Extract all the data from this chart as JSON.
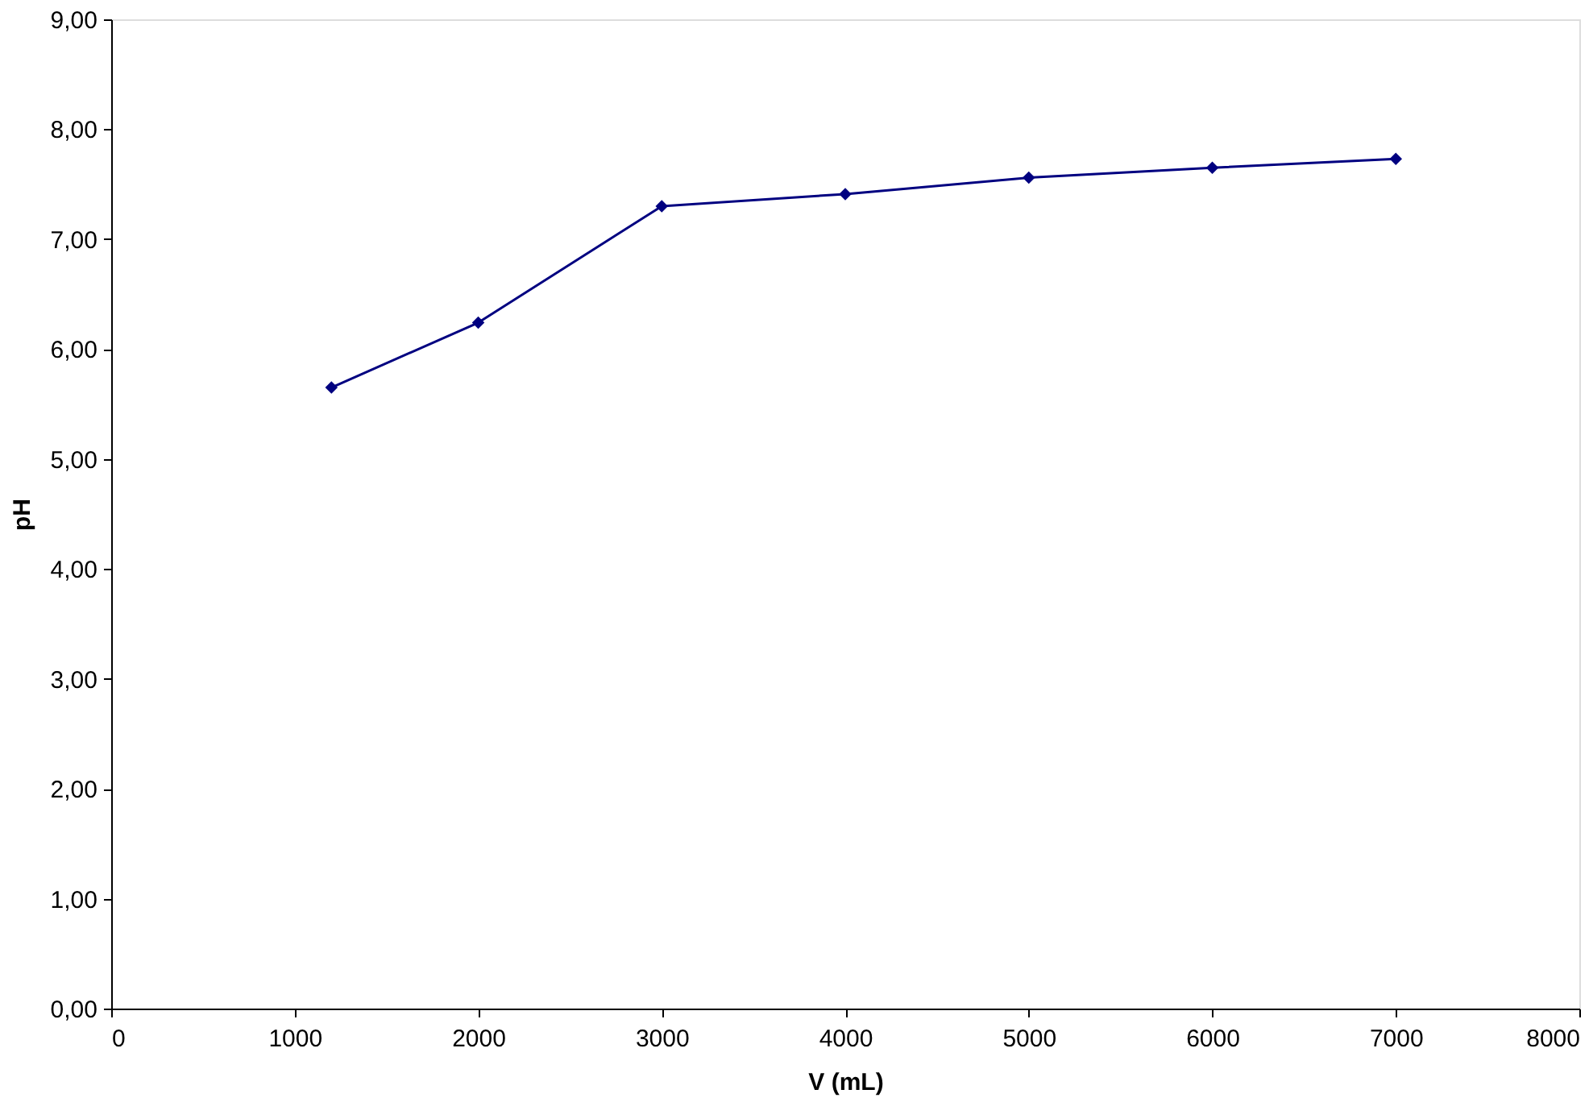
{
  "chart_data": {
    "type": "line",
    "xlabel": "V (mL)",
    "ylabel": "pH",
    "x": [
      1200,
      2000,
      3000,
      4000,
      5000,
      6000,
      7000
    ],
    "series": [
      {
        "color": "#000080",
        "values": [
          5.65,
          6.24,
          7.3,
          7.41,
          7.56,
          7.65,
          7.73
        ]
      }
    ],
    "xlim": [
      0,
      8000
    ],
    "xticks": [
      0,
      1000,
      2000,
      3000,
      4000,
      5000,
      6000,
      7000,
      8000
    ],
    "ylim": [
      0,
      9
    ],
    "yticks": [
      {
        "value": 0,
        "label": "0,00"
      },
      {
        "value": 1,
        "label": "1,00"
      },
      {
        "value": 2,
        "label": "2,00"
      },
      {
        "value": 3,
        "label": "3,00"
      },
      {
        "value": 4,
        "label": "4,00"
      },
      {
        "value": 5,
        "label": "5,00"
      },
      {
        "value": 6,
        "label": "6,00"
      },
      {
        "value": 7,
        "label": "7,00"
      },
      {
        "value": 8,
        "label": "8,00"
      },
      {
        "value": 9,
        "label": "9,00"
      }
    ],
    "grid": false,
    "marker": "diamond",
    "line_style": "solid"
  }
}
